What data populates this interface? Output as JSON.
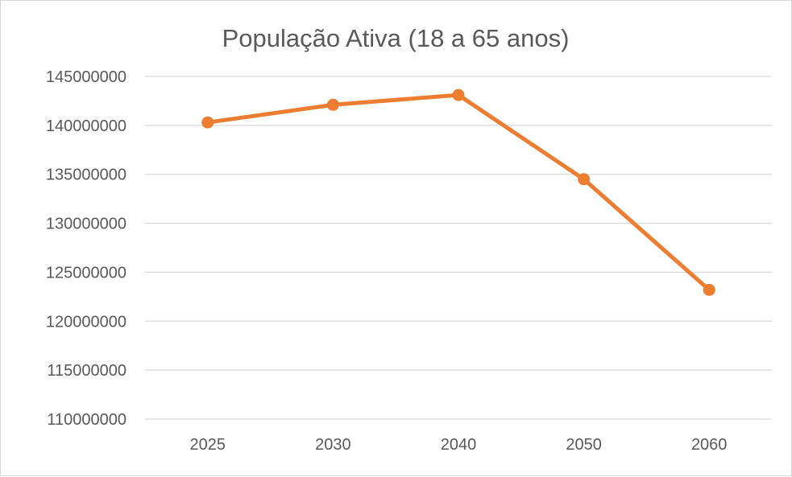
{
  "chart_data": {
    "type": "line",
    "title": "População Ativa (18 a 65 anos)",
    "xlabel": "",
    "ylabel": "",
    "categories": [
      "2025",
      "2030",
      "2040",
      "2050",
      "2060"
    ],
    "series": [
      {
        "values": [
          140300000,
          142100000,
          143100000,
          134500000,
          123200000
        ],
        "color": "#ED7D31"
      }
    ],
    "ylim": [
      110000000,
      145000000
    ],
    "ytick_step": 5000000,
    "yticks": [
      "110000000",
      "115000000",
      "120000000",
      "125000000",
      "130000000",
      "135000000",
      "140000000",
      "145000000"
    ],
    "grid": true,
    "gridline_color": "#d9d9d9",
    "legend": "none"
  }
}
